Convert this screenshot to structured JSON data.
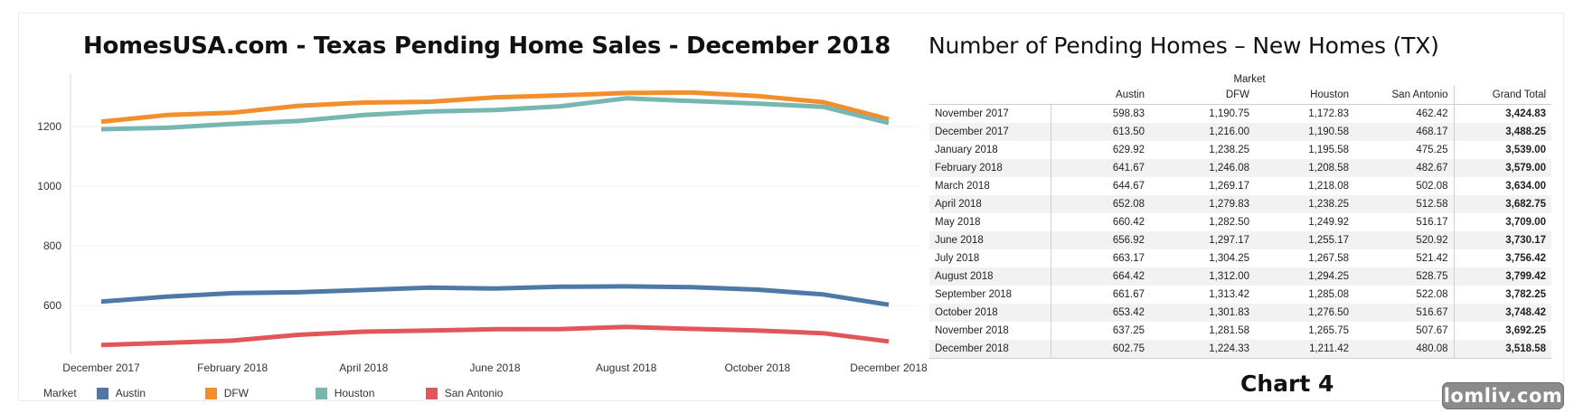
{
  "chart_data": [
    {
      "type": "line",
      "title": "HomesUSA.com - Texas Pending Home Sales - December 2018",
      "xlabel": "",
      "ylabel": "",
      "x": [
        "December 2017",
        "January 2018",
        "February 2018",
        "March 2018",
        "April 2018",
        "May 2018",
        "June 2018",
        "July 2018",
        "August 2018",
        "September 2018",
        "October 2018",
        "November 2018",
        "December 2018"
      ],
      "x_tick_labels": [
        "December 2017",
        "February 2018",
        "April 2018",
        "June 2018",
        "August 2018",
        "October 2018",
        "December 2018"
      ],
      "y_ticks": [
        600,
        800,
        1000,
        1200
      ],
      "ylim": [
        437,
        1345
      ],
      "grid": true,
      "legend_title": "Market",
      "legend_position": "bottom",
      "series": [
        {
          "name": "Austin",
          "color": "#4e79a7",
          "values": [
            613.5,
            629.92,
            641.67,
            644.67,
            652.08,
            660.42,
            656.92,
            663.17,
            664.42,
            661.67,
            653.42,
            637.25,
            602.75
          ]
        },
        {
          "name": "DFW",
          "color": "#f28e2b",
          "values": [
            1216.0,
            1238.25,
            1246.08,
            1269.17,
            1279.83,
            1282.5,
            1297.17,
            1304.25,
            1312.0,
            1313.42,
            1301.83,
            1281.58,
            1224.33
          ]
        },
        {
          "name": "Houston",
          "color": "#76b7b2",
          "values": [
            1190.58,
            1195.58,
            1208.58,
            1218.08,
            1238.25,
            1249.92,
            1255.17,
            1267.58,
            1294.25,
            1285.08,
            1276.5,
            1265.75,
            1211.42
          ]
        },
        {
          "name": "San Antonio",
          "color": "#e15759",
          "values": [
            468.17,
            475.25,
            482.67,
            502.08,
            512.58,
            516.17,
            520.92,
            521.42,
            528.75,
            522.08,
            516.67,
            507.67,
            480.08
          ]
        }
      ]
    },
    {
      "type": "table",
      "title": "Number of Pending Homes – New Homes (TX)",
      "group_header": "Market",
      "columns": [
        "Austin",
        "DFW",
        "Houston",
        "San Antonio",
        "Grand Total"
      ],
      "rows": [
        {
          "label": "November 2017",
          "values": [
            "598.83",
            "1,190.75",
            "1,172.83",
            "462.42",
            "3,424.83"
          ]
        },
        {
          "label": "December 2017",
          "values": [
            "613.50",
            "1,216.00",
            "1,190.58",
            "468.17",
            "3,488.25"
          ]
        },
        {
          "label": "January 2018",
          "values": [
            "629.92",
            "1,238.25",
            "1,195.58",
            "475.25",
            "3,539.00"
          ]
        },
        {
          "label": "February 2018",
          "values": [
            "641.67",
            "1,246.08",
            "1,208.58",
            "482.67",
            "3,579.00"
          ]
        },
        {
          "label": "March 2018",
          "values": [
            "644.67",
            "1,269.17",
            "1,218.08",
            "502.08",
            "3,634.00"
          ]
        },
        {
          "label": "April 2018",
          "values": [
            "652.08",
            "1,279.83",
            "1,238.25",
            "512.58",
            "3,682.75"
          ]
        },
        {
          "label": "May 2018",
          "values": [
            "660.42",
            "1,282.50",
            "1,249.92",
            "516.17",
            "3,709.00"
          ]
        },
        {
          "label": "June 2018",
          "values": [
            "656.92",
            "1,297.17",
            "1,255.17",
            "520.92",
            "3,730.17"
          ]
        },
        {
          "label": "July 2018",
          "values": [
            "663.17",
            "1,304.25",
            "1,267.58",
            "521.42",
            "3,756.42"
          ]
        },
        {
          "label": "August 2018",
          "values": [
            "664.42",
            "1,312.00",
            "1,294.25",
            "528.75",
            "3,799.42"
          ]
        },
        {
          "label": "September 2018",
          "values": [
            "661.67",
            "1,313.42",
            "1,285.08",
            "522.08",
            "3,782.25"
          ]
        },
        {
          "label": "October 2018",
          "values": [
            "653.42",
            "1,301.83",
            "1,276.50",
            "516.67",
            "3,748.42"
          ]
        },
        {
          "label": "November 2018",
          "values": [
            "637.25",
            "1,281.58",
            "1,265.75",
            "507.67",
            "3,692.25"
          ]
        },
        {
          "label": "December 2018",
          "values": [
            "602.75",
            "1,224.33",
            "1,211.42",
            "480.08",
            "3,518.58"
          ]
        }
      ]
    }
  ],
  "caption": "Chart 4",
  "watermark": "lomliv.com"
}
